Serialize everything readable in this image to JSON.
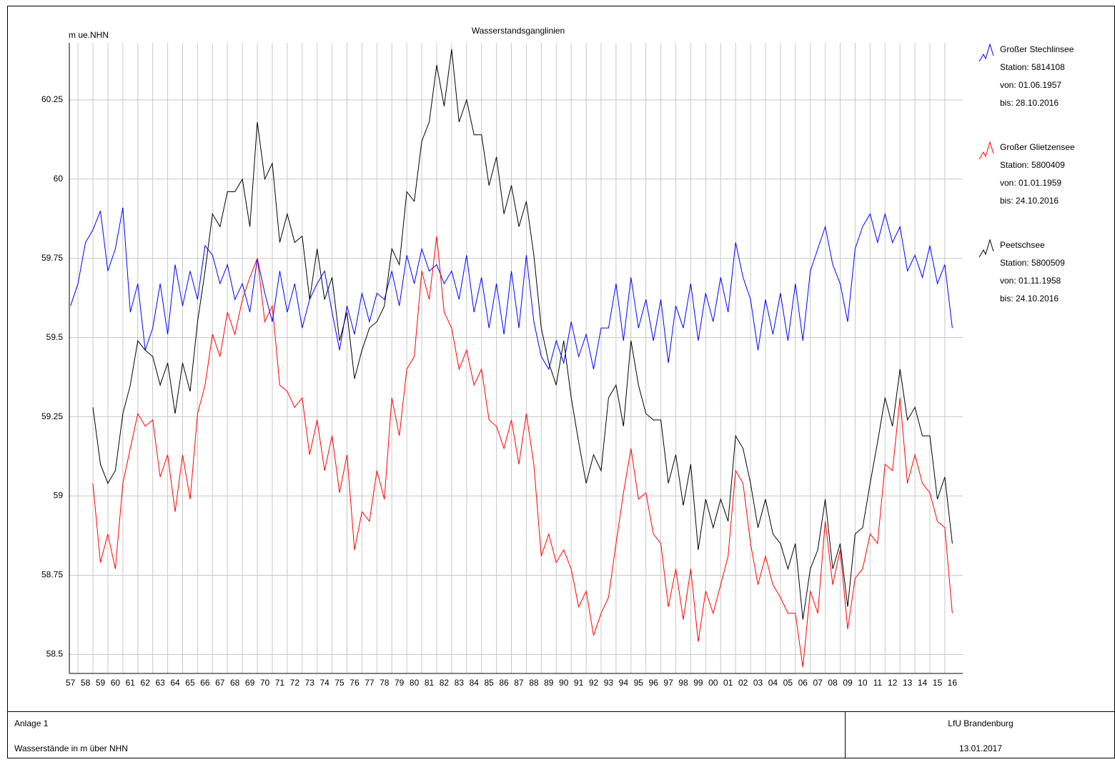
{
  "chart_data": {
    "type": "line",
    "title": "Wasserstandsganglinien",
    "y_label": "m ue.NHN",
    "x": [
      1957.5,
      1958,
      1958.5,
      1959,
      1959.5,
      1960,
      1960.5,
      1961,
      1961.5,
      1962,
      1962.5,
      1963,
      1963.5,
      1964,
      1964.5,
      1965,
      1965.5,
      1966,
      1966.5,
      1967,
      1967.5,
      1968,
      1968.5,
      1969,
      1969.5,
      1970,
      1970.5,
      1971,
      1971.5,
      1972,
      1972.5,
      1973,
      1973.5,
      1974,
      1974.5,
      1975,
      1975.5,
      1976,
      1976.5,
      1977,
      1977.5,
      1978,
      1978.5,
      1979,
      1979.5,
      1980,
      1980.5,
      1981,
      1981.5,
      1982,
      1982.5,
      1983,
      1983.5,
      1984,
      1984.5,
      1985,
      1985.5,
      1986,
      1986.5,
      1987,
      1987.5,
      1988,
      1988.5,
      1989,
      1989.5,
      1990,
      1990.5,
      1991,
      1991.5,
      1992,
      1992.5,
      1993,
      1993.5,
      1994,
      1994.5,
      1995,
      1995.5,
      1996,
      1996.5,
      1997,
      1997.5,
      1998,
      1998.5,
      1999,
      1999.5,
      2000,
      2000.5,
      2001,
      2001.5,
      2002,
      2002.5,
      2003,
      2003.5,
      2004,
      2004.5,
      2005,
      2005.5,
      2006,
      2006.5,
      2007,
      2007.5,
      2008,
      2008.5,
      2009,
      2009.5,
      2010,
      2010.5,
      2011,
      2011.5,
      2012,
      2012.5,
      2013,
      2013.5,
      2014,
      2014.5,
      2015,
      2015.5,
      2016,
      2016.5
    ],
    "series": [
      {
        "name": "Großer Stechlinsee",
        "color": "#0000ff",
        "details": [
          "Station: 5814108",
          "von: 01.06.1957",
          "bis: 28.10.2016"
        ],
        "values": [
          59.6,
          59.67,
          59.8,
          59.84,
          59.9,
          59.71,
          59.78,
          59.91,
          59.58,
          59.67,
          59.46,
          59.53,
          59.67,
          59.51,
          59.73,
          59.6,
          59.71,
          59.62,
          59.79,
          59.76,
          59.67,
          59.73,
          59.62,
          59.67,
          59.58,
          59.75,
          59.64,
          59.55,
          59.71,
          59.58,
          59.67,
          59.53,
          59.62,
          59.67,
          59.71,
          59.58,
          59.46,
          59.6,
          59.51,
          59.64,
          59.55,
          59.64,
          59.62,
          59.71,
          59.6,
          59.76,
          59.67,
          59.78,
          59.71,
          59.73,
          59.67,
          59.71,
          59.62,
          59.76,
          59.58,
          59.69,
          59.53,
          59.67,
          59.51,
          59.71,
          59.53,
          59.76,
          59.55,
          59.44,
          59.4,
          59.49,
          59.42,
          59.55,
          59.44,
          59.51,
          59.4,
          59.53,
          59.53,
          59.67,
          59.49,
          59.69,
          59.53,
          59.62,
          59.49,
          59.62,
          59.42,
          59.6,
          59.53,
          59.67,
          59.49,
          59.64,
          59.55,
          59.69,
          59.58,
          59.8,
          59.69,
          59.62,
          59.46,
          59.62,
          59.51,
          59.64,
          59.49,
          59.67,
          59.49,
          59.71,
          59.78,
          59.85,
          59.73,
          59.67,
          59.55,
          59.78,
          59.85,
          59.89,
          59.8,
          59.89,
          59.8,
          59.85,
          59.71,
          59.76,
          59.69,
          59.79,
          59.67,
          59.73,
          59.53
        ]
      },
      {
        "name": "Großer Glietzensee",
        "color": "#ff0000",
        "details": [
          "Station: 5800409",
          "von: 01.01.1959",
          "bis: 24.10.2016"
        ],
        "values": [
          null,
          null,
          null,
          59.04,
          58.79,
          58.88,
          58.77,
          59.04,
          59.15,
          59.26,
          59.22,
          59.24,
          59.06,
          59.13,
          58.95,
          59.13,
          58.99,
          59.26,
          59.35,
          59.51,
          59.44,
          59.58,
          59.51,
          59.62,
          59.69,
          59.75,
          59.55,
          59.6,
          59.35,
          59.33,
          59.28,
          59.31,
          59.13,
          59.24,
          59.08,
          59.19,
          59.01,
          59.13,
          58.83,
          58.95,
          58.92,
          59.08,
          58.99,
          59.31,
          59.19,
          59.4,
          59.44,
          59.71,
          59.62,
          59.82,
          59.58,
          59.53,
          59.4,
          59.46,
          59.35,
          59.4,
          59.24,
          59.22,
          59.15,
          59.24,
          59.1,
          59.26,
          59.1,
          58.81,
          58.88,
          58.79,
          58.83,
          58.77,
          58.65,
          58.7,
          58.56,
          58.63,
          58.68,
          58.85,
          59.01,
          59.15,
          58.99,
          59.01,
          58.88,
          58.85,
          58.65,
          58.77,
          58.61,
          58.77,
          58.54,
          58.7,
          58.63,
          58.72,
          58.81,
          59.08,
          59.04,
          58.85,
          58.72,
          58.81,
          58.72,
          58.68,
          58.63,
          58.63,
          58.46,
          58.7,
          58.63,
          58.92,
          58.72,
          58.83,
          58.58,
          58.74,
          58.77,
          58.88,
          58.85,
          59.1,
          59.08,
          59.31,
          59.04,
          59.13,
          59.04,
          59.01,
          58.92,
          58.9,
          58.63
        ]
      },
      {
        "name": "Peetschsee",
        "color": "#000000",
        "details": [
          "Station: 5800509",
          "von: 01.11.1958",
          "bis: 24.10.2016"
        ],
        "values": [
          null,
          null,
          null,
          59.28,
          59.1,
          59.04,
          59.08,
          59.26,
          59.35,
          59.49,
          59.46,
          59.44,
          59.35,
          59.42,
          59.26,
          59.42,
          59.33,
          59.55,
          59.71,
          59.89,
          59.85,
          59.96,
          59.96,
          60,
          59.85,
          60.18,
          60,
          60.05,
          59.8,
          59.89,
          59.8,
          59.82,
          59.62,
          59.78,
          59.62,
          59.69,
          59.49,
          59.58,
          59.37,
          59.46,
          59.53,
          59.55,
          59.6,
          59.78,
          59.73,
          59.96,
          59.93,
          60.12,
          60.18,
          60.36,
          60.23,
          60.41,
          60.18,
          60.25,
          60.14,
          60.14,
          59.98,
          60.07,
          59.89,
          59.98,
          59.85,
          59.93,
          59.76,
          59.53,
          59.42,
          59.35,
          59.49,
          59.31,
          59.17,
          59.04,
          59.13,
          59.08,
          59.31,
          59.35,
          59.22,
          59.49,
          59.35,
          59.26,
          59.24,
          59.24,
          59.04,
          59.13,
          58.97,
          59.1,
          58.83,
          58.99,
          58.9,
          58.99,
          58.92,
          59.19,
          59.15,
          59.04,
          58.9,
          58.99,
          58.88,
          58.85,
          58.77,
          58.85,
          58.61,
          58.77,
          58.83,
          58.99,
          58.77,
          58.85,
          58.65,
          58.88,
          58.9,
          59.04,
          59.17,
          59.31,
          59.22,
          59.4,
          59.24,
          59.28,
          59.19,
          59.19,
          58.99,
          59.06,
          58.85
        ]
      }
    ],
    "xlim": [
      1957.42,
      2017.2
    ],
    "ylim": [
      58.44,
      60.43
    ],
    "yticks": [
      58.5,
      58.75,
      59,
      59.25,
      59.5,
      59.75,
      60,
      60.25
    ],
    "xticks": [
      {
        "value": 1957,
        "label": "57"
      },
      {
        "value": 1958,
        "label": "58"
      },
      {
        "value": 1959,
        "label": "59"
      },
      {
        "value": 1960,
        "label": "60"
      },
      {
        "value": 1961,
        "label": "61"
      },
      {
        "value": 1962,
        "label": "62"
      },
      {
        "value": 1963,
        "label": "63"
      },
      {
        "value": 1964,
        "label": "64"
      },
      {
        "value": 1965,
        "label": "65"
      },
      {
        "value": 1966,
        "label": "66"
      },
      {
        "value": 1967,
        "label": "67"
      },
      {
        "value": 1968,
        "label": "68"
      },
      {
        "value": 1969,
        "label": "69"
      },
      {
        "value": 1970,
        "label": "70"
      },
      {
        "value": 1971,
        "label": "71"
      },
      {
        "value": 1972,
        "label": "72"
      },
      {
        "value": 1973,
        "label": "73"
      },
      {
        "value": 1974,
        "label": "74"
      },
      {
        "value": 1975,
        "label": "75"
      },
      {
        "value": 1976,
        "label": "76"
      },
      {
        "value": 1977,
        "label": "77"
      },
      {
        "value": 1978,
        "label": "78"
      },
      {
        "value": 1979,
        "label": "79"
      },
      {
        "value": 1980,
        "label": "80"
      },
      {
        "value": 1981,
        "label": "81"
      },
      {
        "value": 1982,
        "label": "82"
      },
      {
        "value": 1983,
        "label": "83"
      },
      {
        "value": 1984,
        "label": "84"
      },
      {
        "value": 1985,
        "label": "85"
      },
      {
        "value": 1986,
        "label": "86"
      },
      {
        "value": 1987,
        "label": "87"
      },
      {
        "value": 1988,
        "label": "88"
      },
      {
        "value": 1989,
        "label": "89"
      },
      {
        "value": 1990,
        "label": "90"
      },
      {
        "value": 1991,
        "label": "91"
      },
      {
        "value": 1992,
        "label": "92"
      },
      {
        "value": 1993,
        "label": "93"
      },
      {
        "value": 1994,
        "label": "94"
      },
      {
        "value": 1995,
        "label": "95"
      },
      {
        "value": 1996,
        "label": "96"
      },
      {
        "value": 1997,
        "label": "97"
      },
      {
        "value": 1998,
        "label": "98"
      },
      {
        "value": 1999,
        "label": "99"
      },
      {
        "value": 2000,
        "label": "00"
      },
      {
        "value": 2001,
        "label": "01"
      },
      {
        "value": 2002,
        "label": "02"
      },
      {
        "value": 2003,
        "label": "03"
      },
      {
        "value": 2004,
        "label": "04"
      },
      {
        "value": 2005,
        "label": "05"
      },
      {
        "value": 2006,
        "label": "06"
      },
      {
        "value": 2007,
        "label": "07"
      },
      {
        "value": 2008,
        "label": "08"
      },
      {
        "value": 2009,
        "label": "09"
      },
      {
        "value": 2010,
        "label": "10"
      },
      {
        "value": 2011,
        "label": "11"
      },
      {
        "value": 2012,
        "label": "12"
      },
      {
        "value": 2013,
        "label": "13"
      },
      {
        "value": 2014,
        "label": "14"
      },
      {
        "value": 2015,
        "label": "15"
      },
      {
        "value": 2016,
        "label": "16"
      }
    ],
    "grid": true,
    "legend": "right"
  },
  "footer": {
    "left": [
      "Anlage 1",
      "Wasserstände in m über NHN"
    ],
    "right": [
      "LfU Brandenburg",
      "13.01.2017"
    ]
  }
}
